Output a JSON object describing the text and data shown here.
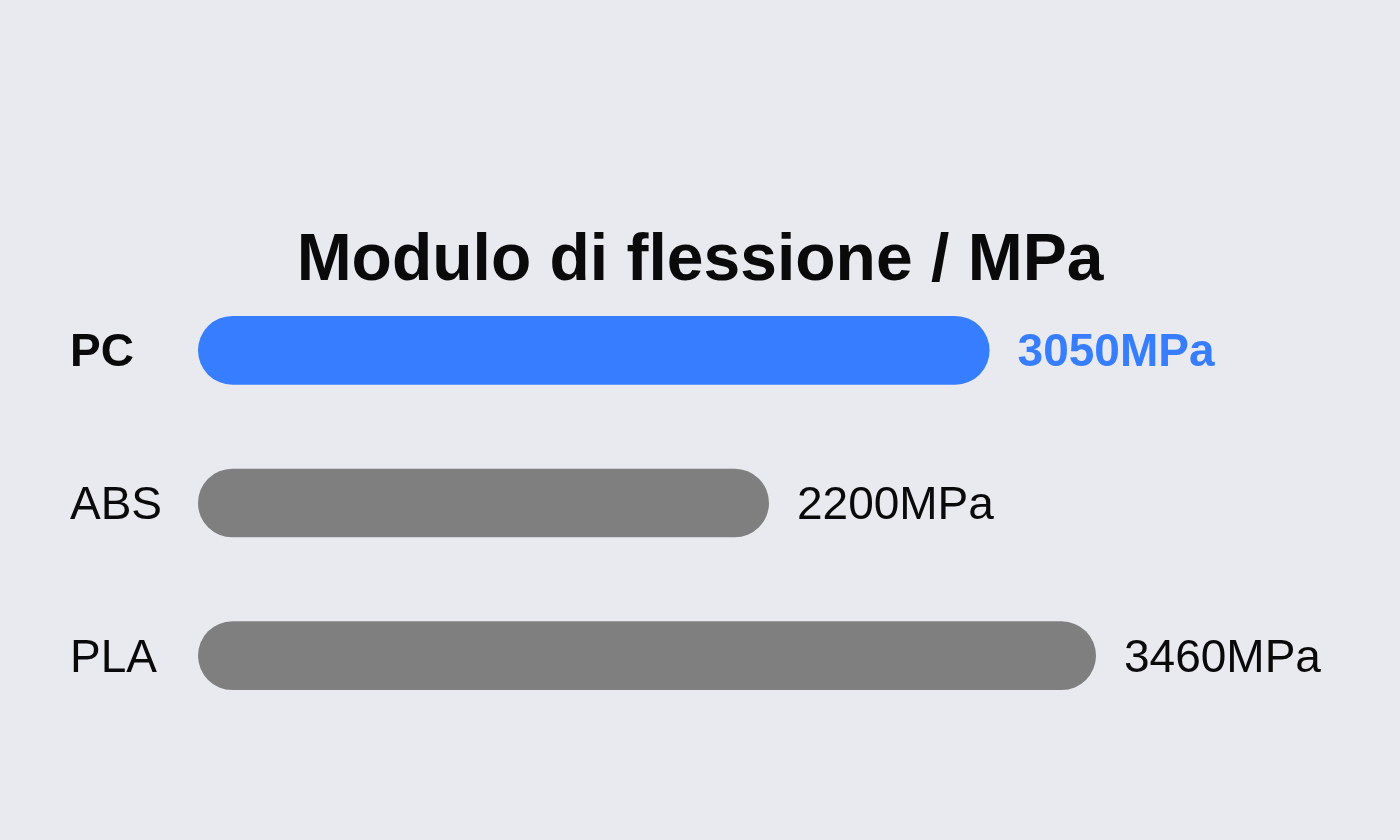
{
  "chart_data": {
    "type": "bar",
    "orientation": "horizontal",
    "relative": false,
    "title": "Modulo di flessione / MPa",
    "categories": [
      "PC",
      "ABS",
      "PLA"
    ],
    "values": [
      3050,
      2200,
      3460
    ],
    "colors": [
      "#377dff",
      "#7f7f7f",
      "#7f7f7f"
    ],
    "value_labels": [
      "3050MPa",
      "2200MPa",
      "3460MPa"
    ]
  }
}
